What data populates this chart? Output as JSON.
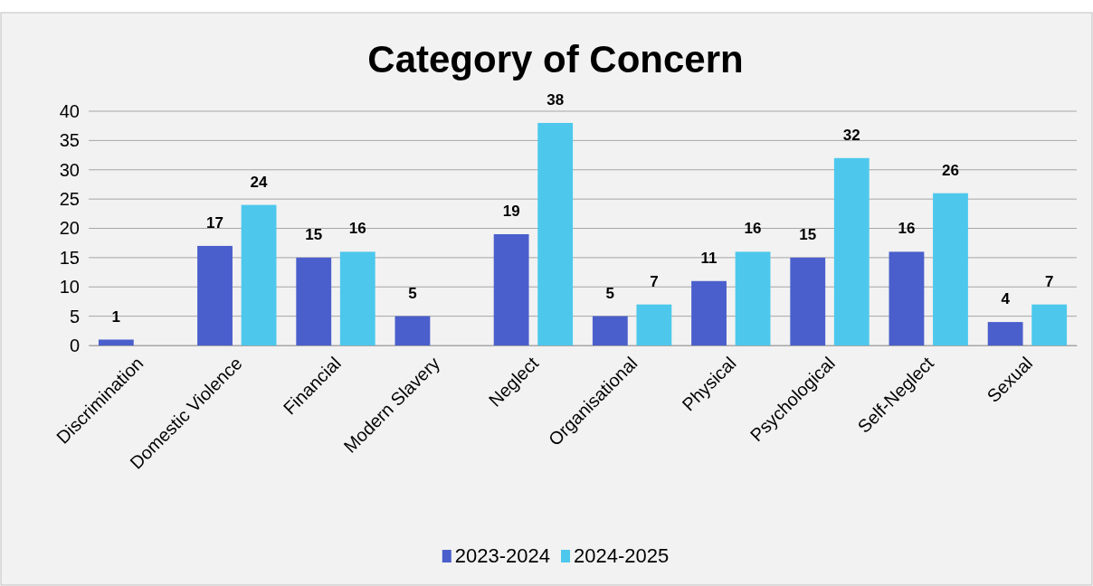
{
  "chart_data": {
    "type": "bar",
    "title": "Category of Concern",
    "categories": [
      "Discrimination",
      "Domestic Violence",
      "Financial",
      "Modern Slavery",
      "Neglect",
      "Organisational",
      "Physical",
      "Psychological",
      "Self-Neglect",
      "Sexual"
    ],
    "series": [
      {
        "name": "2023-2024",
        "color": "#4a5fcc",
        "values": [
          1,
          17,
          15,
          5,
          19,
          5,
          11,
          15,
          16,
          4
        ]
      },
      {
        "name": "2024-2025",
        "color": "#4dc8ec",
        "values": [
          null,
          24,
          16,
          null,
          38,
          7,
          16,
          32,
          26,
          7
        ]
      }
    ],
    "ylim": [
      0,
      40
    ],
    "yticks": [
      0,
      5,
      10,
      15,
      20,
      25,
      30,
      35,
      40
    ],
    "grid": "y",
    "legend": "bottom",
    "data_labels": true
  }
}
